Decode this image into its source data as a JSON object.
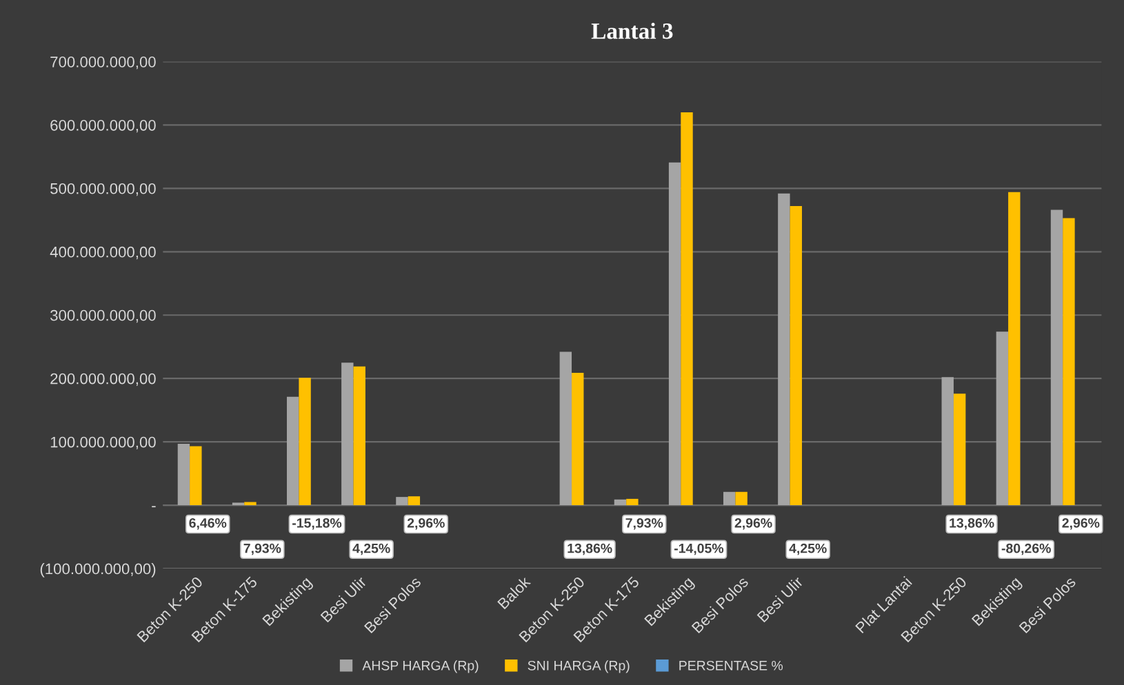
{
  "chart_data": {
    "type": "bar",
    "title": "Lantai 3",
    "categories": [
      "Beton K-250",
      "Beton K-175",
      "Bekisting",
      "Besi Ulir",
      "Besi Polos",
      null,
      "Balok",
      "Beton K-250",
      "Beton K-175",
      "Bekisting",
      "Besi Polos",
      "Besi Ulir",
      null,
      "Plat Lantai",
      "Beton K-250",
      "Bekisting",
      "Besi Polos"
    ],
    "series": [
      {
        "name": "AHSP HARGA (Rp)",
        "color": "#a5a5a5",
        "values": [
          97000000,
          4000000,
          171000000,
          225000000,
          13000000,
          null,
          null,
          242000000,
          9000000,
          541000000,
          21000000,
          492000000,
          null,
          null,
          202000000,
          274000000,
          466000000
        ]
      },
      {
        "name": "SNI HARGA (Rp)",
        "color": "#ffc000",
        "values": [
          93000000,
          5000000,
          201000000,
          219000000,
          14000000,
          null,
          null,
          209000000,
          10000000,
          620000000,
          21000000,
          472000000,
          null,
          null,
          176000000,
          494000000,
          453000000
        ]
      },
      {
        "name": "PERSENTASE %",
        "color": "#5b9bd5",
        "values": [
          6.46,
          7.93,
          -15.18,
          4.25,
          2.96,
          null,
          null,
          13.86,
          7.93,
          -14.05,
          2.96,
          4.25,
          null,
          null,
          13.86,
          -80.26,
          2.96
        ],
        "value_labels": [
          "6,46%",
          "7,93%",
          "-15,18%",
          "4,25%",
          "2,96%",
          null,
          null,
          "13,86%",
          "7,93%",
          "-14,05%",
          "2,96%",
          "4,25%",
          null,
          null,
          "13,86%",
          "-80,26%",
          "2,96%"
        ]
      }
    ],
    "ylim": [
      -100000000,
      700000000
    ],
    "yticks": [
      {
        "value": -100000000,
        "label": "(100.000.000,00)"
      },
      {
        "value": 0,
        "label": "-"
      },
      {
        "value": 100000000,
        "label": "100.000.000,00"
      },
      {
        "value": 200000000,
        "label": "200.000.000,00"
      },
      {
        "value": 300000000,
        "label": "300.000.000,00"
      },
      {
        "value": 400000000,
        "label": "400.000.000,00"
      },
      {
        "value": 500000000,
        "label": "500.000.000,00"
      },
      {
        "value": 600000000,
        "label": "600.000.000,00"
      },
      {
        "value": 700000000,
        "label": "700.000.000,00"
      }
    ],
    "grid": "y",
    "legend": "bottom"
  }
}
